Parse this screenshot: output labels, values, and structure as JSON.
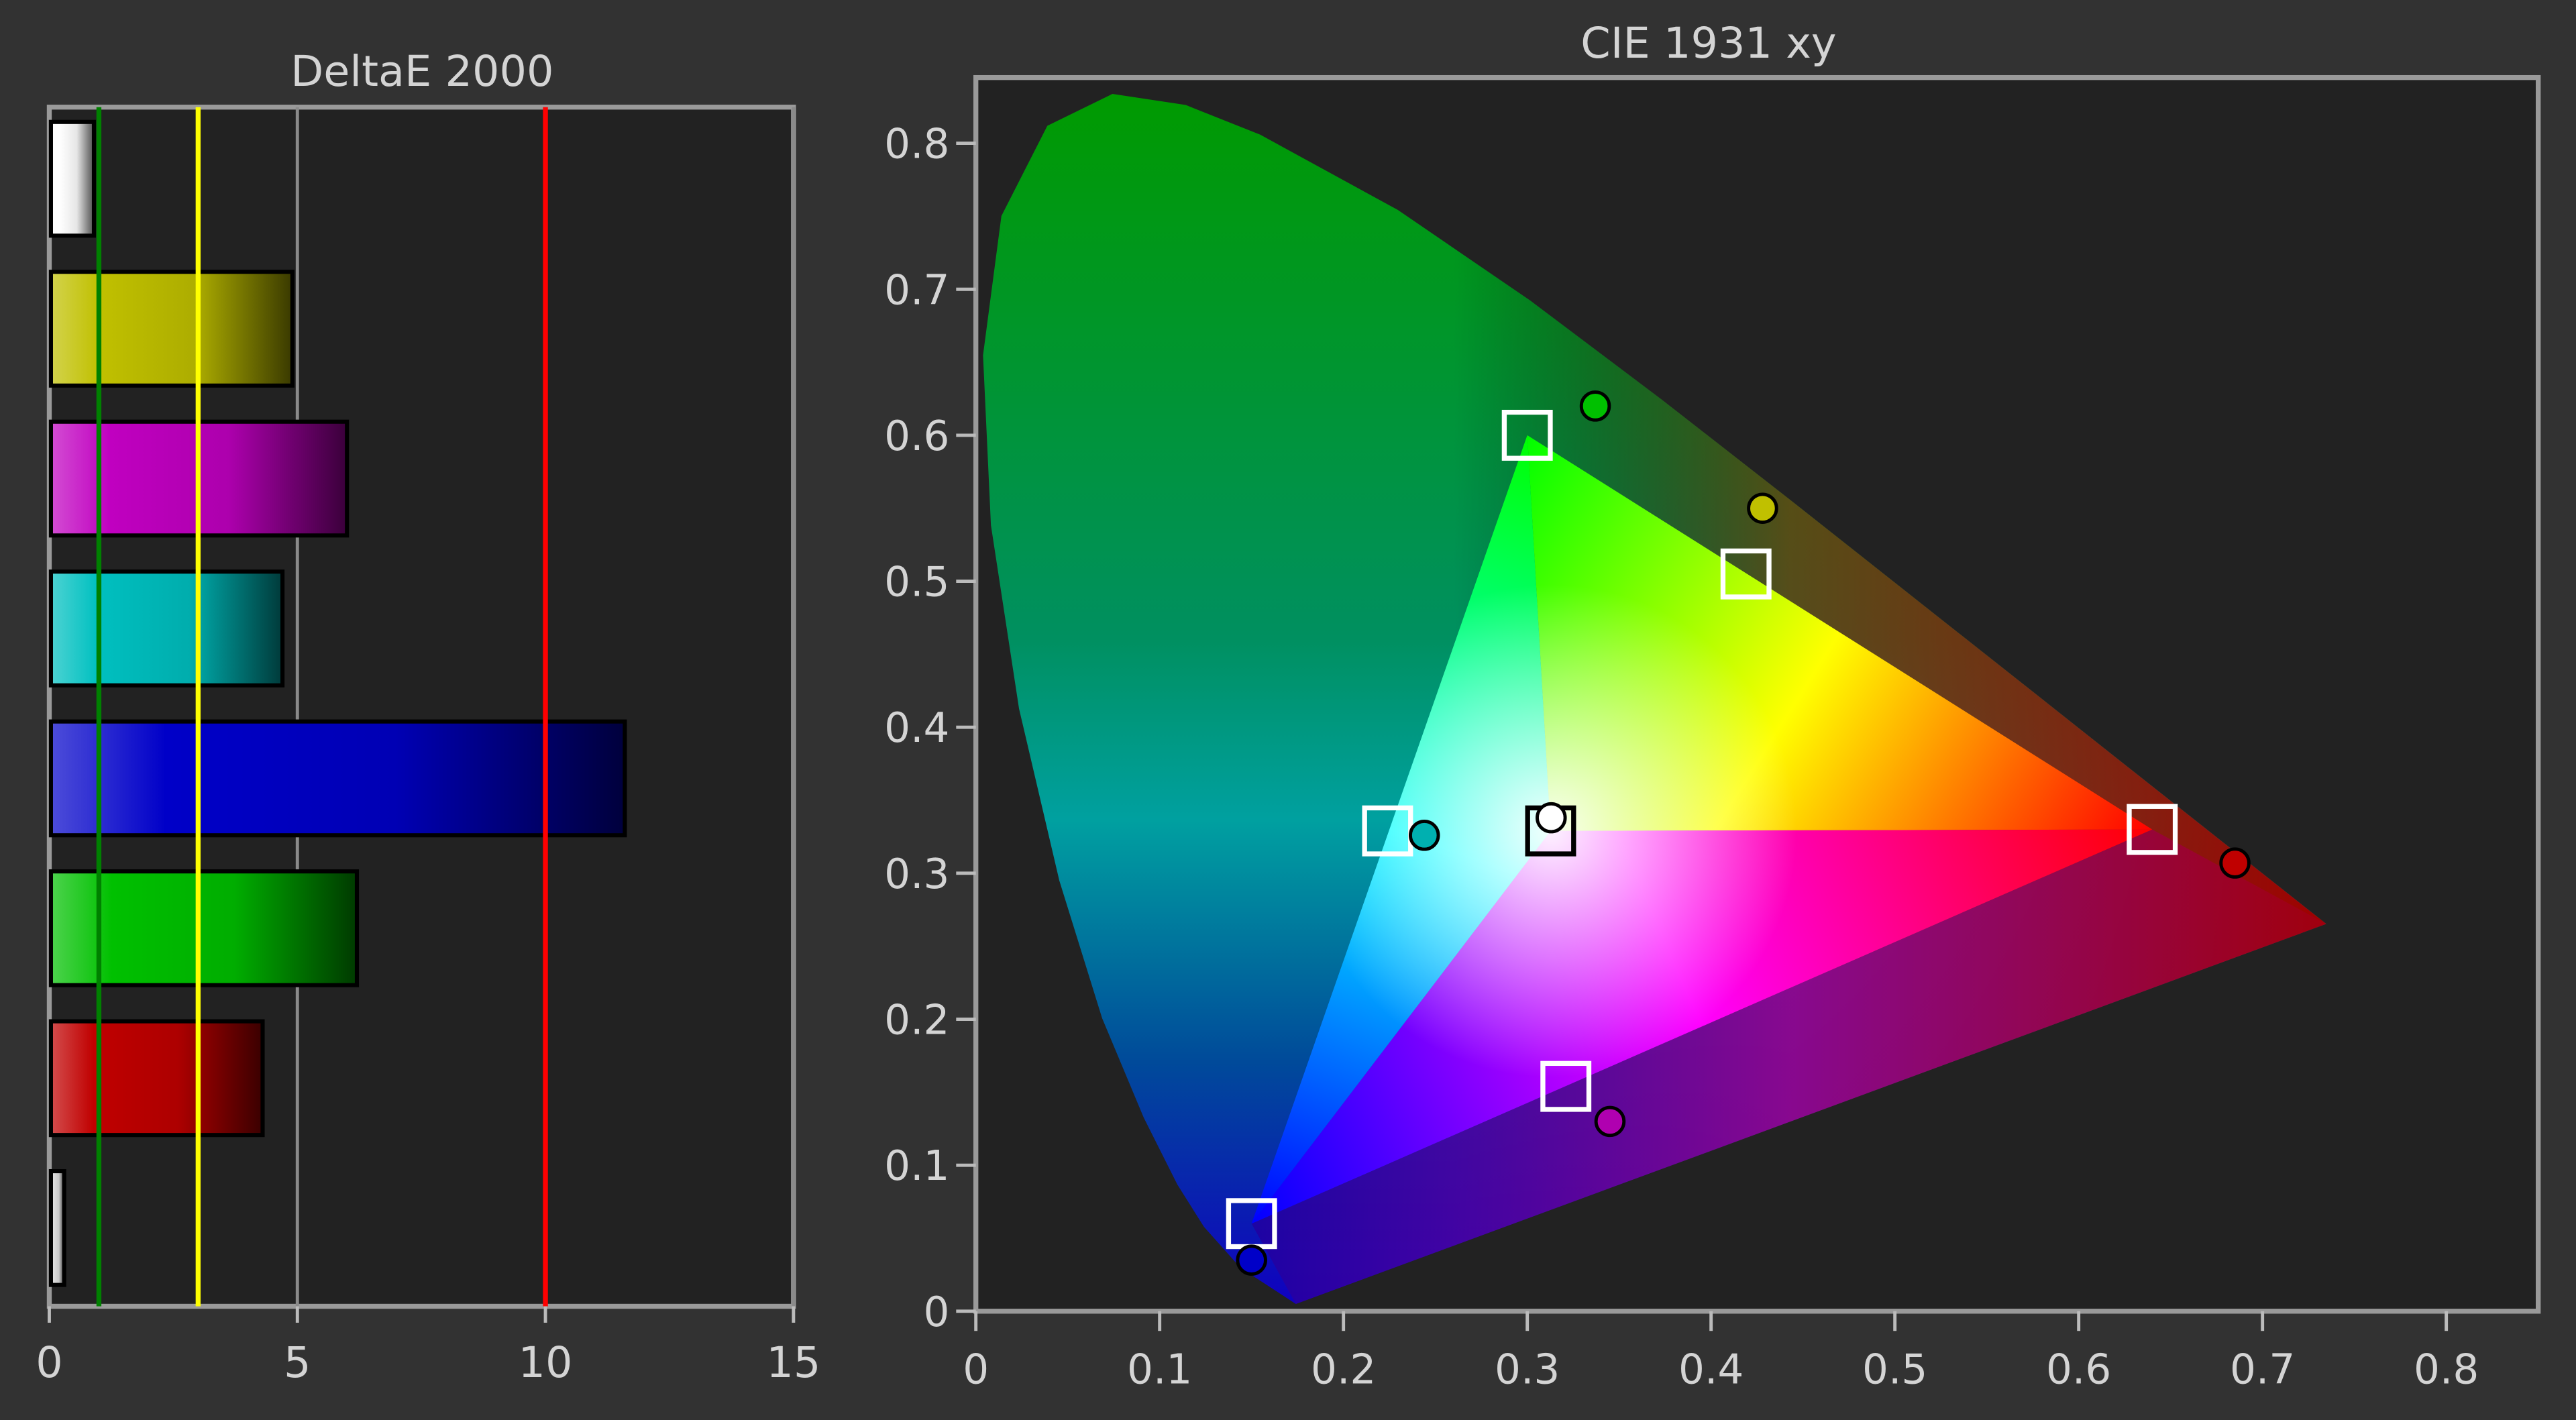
{
  "chart_data": [
    {
      "type": "bar",
      "orientation": "horizontal",
      "title": "DeltaE 2000",
      "xlim": [
        0,
        15
      ],
      "x_ticks": [
        "0",
        "5",
        "10",
        "15"
      ],
      "grid": true,
      "reference_lines": [
        {
          "value": 1,
          "color": "#008000"
        },
        {
          "value": 3,
          "color": "#ffff00"
        },
        {
          "value": 10,
          "color": "#ff0000"
        }
      ],
      "bars": [
        {
          "color": "#ffffff",
          "value": 0.9
        },
        {
          "color": "#c0c000",
          "value": 4.9
        },
        {
          "color": "#c000c0",
          "value": 6.0
        },
        {
          "color": "#00c0c0",
          "value": 4.7
        },
        {
          "color": "#0000c8",
          "value": 11.6
        },
        {
          "color": "#00c000",
          "value": 6.2
        },
        {
          "color": "#c00000",
          "value": 4.3
        },
        {
          "color": "#dddddd",
          "value": 0.3
        }
      ]
    },
    {
      "type": "scatter",
      "title": "CIE 1931 xy",
      "xlim": [
        0,
        0.85
      ],
      "ylim": [
        0,
        0.845
      ],
      "x_ticks": [
        "0",
        "0.1",
        "0.2",
        "0.3",
        "0.4",
        "0.5",
        "0.6",
        "0.7",
        "0.8"
      ],
      "y_ticks": [
        "0",
        "0.1",
        "0.2",
        "0.3",
        "0.4",
        "0.5",
        "0.6",
        "0.7",
        "0.8"
      ],
      "targets": [
        {
          "color": "#00ff00",
          "x": 0.3,
          "y": 0.6
        },
        {
          "color": "#ffff00",
          "x": 0.419,
          "y": 0.505
        },
        {
          "color": "#ff0000",
          "x": 0.64,
          "y": 0.33
        },
        {
          "color": "#00ffff",
          "x": 0.224,
          "y": 0.329
        },
        {
          "color": "#ffffff",
          "x": 0.3127,
          "y": 0.329
        },
        {
          "color": "#ff00ff",
          "x": 0.321,
          "y": 0.154
        },
        {
          "color": "#0000ff",
          "x": 0.15,
          "y": 0.06
        }
      ],
      "measured": [
        {
          "color": "#00c000",
          "x": 0.337,
          "y": 0.62
        },
        {
          "color": "#c0c000",
          "x": 0.428,
          "y": 0.55
        },
        {
          "color": "#c00000",
          "x": 0.685,
          "y": 0.307
        },
        {
          "color": "#00b0b0",
          "x": 0.244,
          "y": 0.326
        },
        {
          "color": "#ffffff",
          "x": 0.313,
          "y": 0.338
        },
        {
          "color": "#b000b0",
          "x": 0.345,
          "y": 0.13
        },
        {
          "color": "#0000c8",
          "x": 0.15,
          "y": 0.035
        }
      ]
    }
  ]
}
